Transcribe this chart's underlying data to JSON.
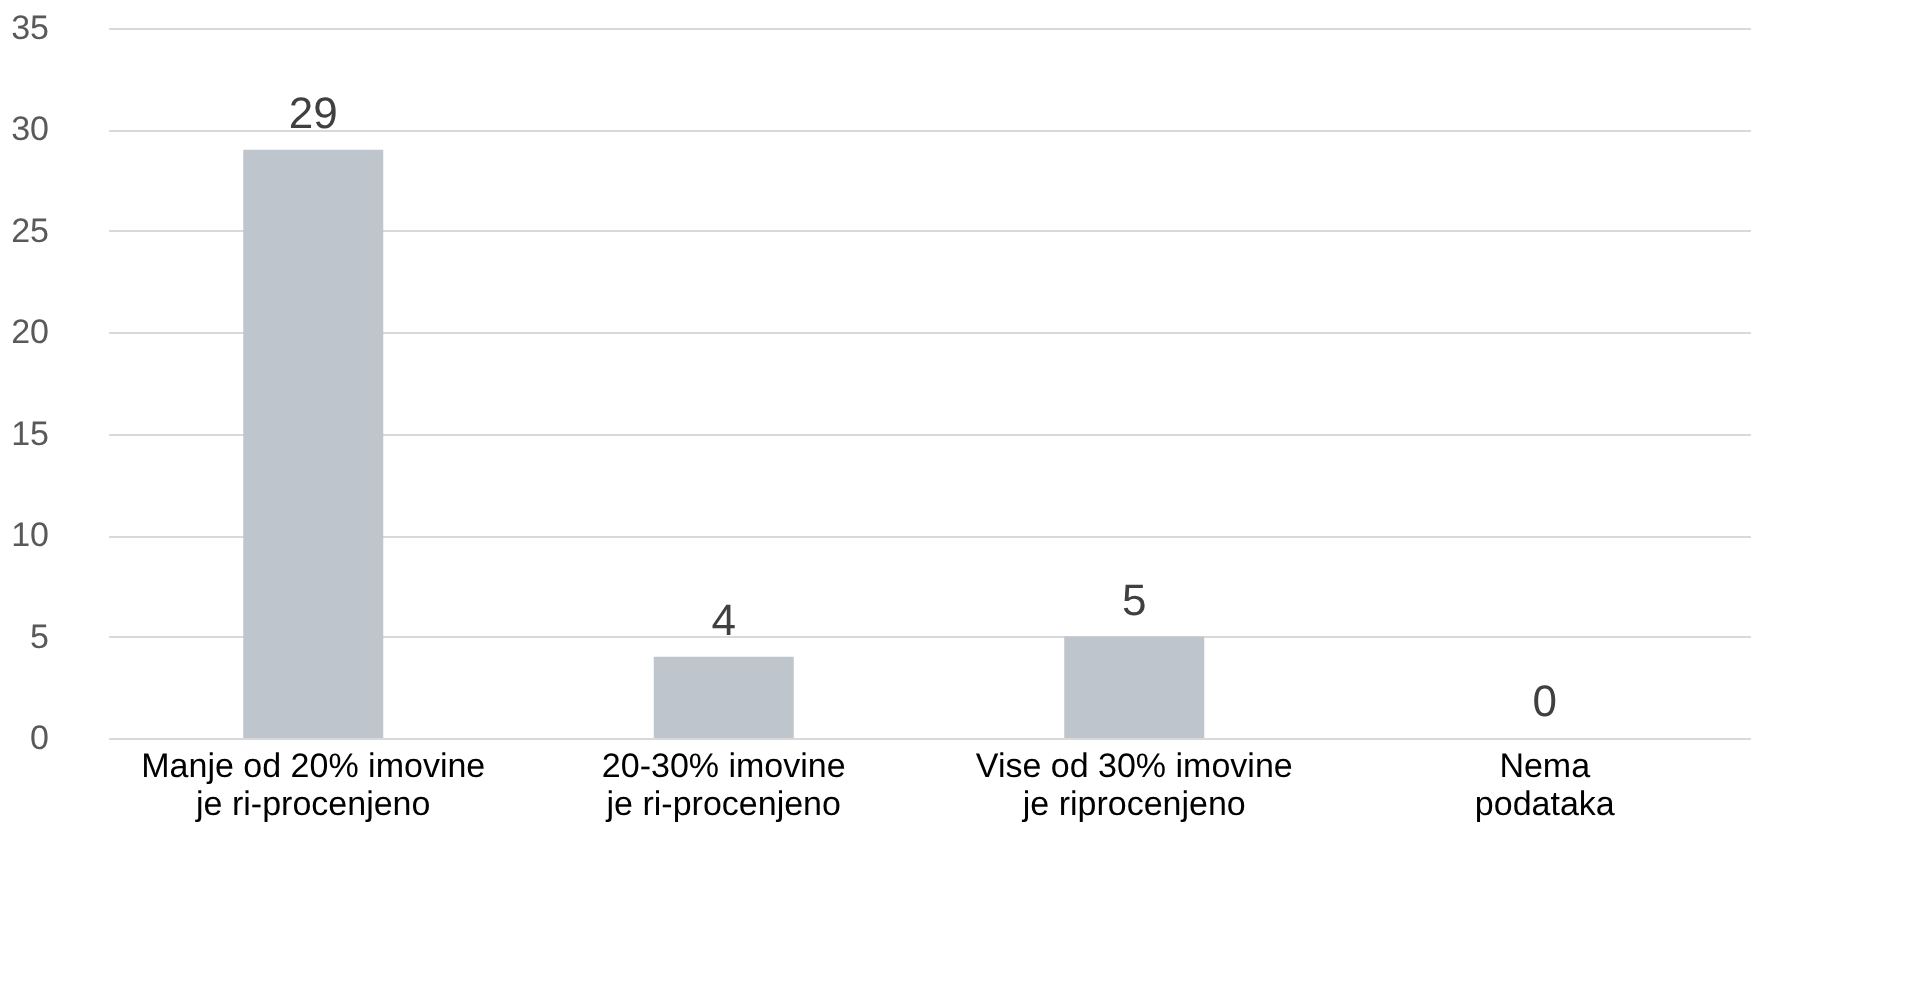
{
  "chart_data": {
    "type": "bar",
    "categories": [
      "Manje od 20% imovine\nje ri-procenjeno",
      "20-30% imovine\nje ri-procenjeno",
      "Vise od 30% imovine\nje riprocenjeno",
      "Nema\npodataka"
    ],
    "values": [
      29,
      4,
      5,
      0
    ],
    "color": "#bfc5cc",
    "ylim": [
      0,
      35
    ],
    "yticks": [
      0,
      5,
      10,
      15,
      20,
      25,
      30,
      35
    ],
    "grid": "y",
    "data_labels": true
  }
}
